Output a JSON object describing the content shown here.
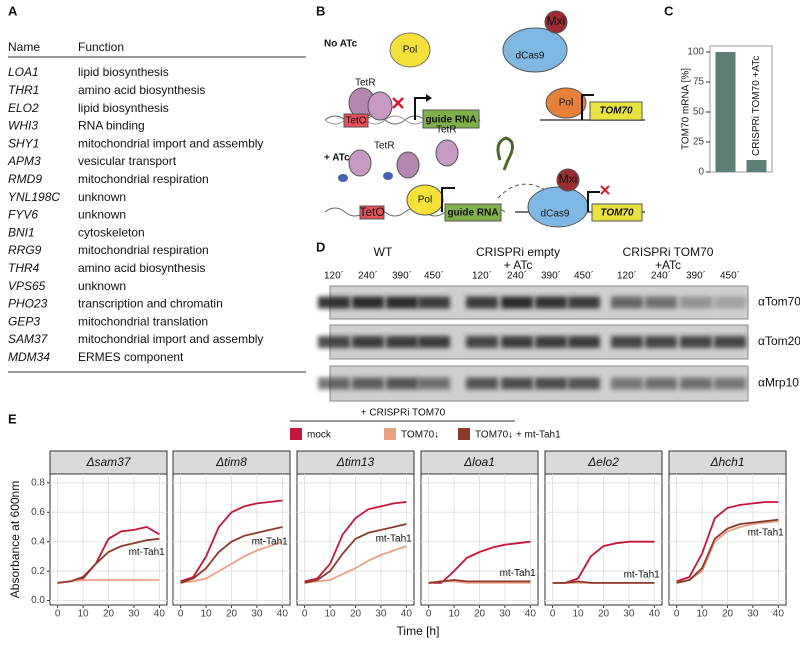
{
  "panel_labels": [
    "A",
    "B",
    "C",
    "D",
    "E"
  ],
  "table": {
    "header": [
      "Name",
      "Function"
    ],
    "rows": [
      [
        "LOA1",
        "lipid biosynthesis"
      ],
      [
        "THR1",
        "amino acid biosynthesis"
      ],
      [
        "ELO2",
        "lipid biosynthesis"
      ],
      [
        "WHI3",
        "RNA binding"
      ],
      [
        "SHY1",
        "mitochondrial import and assembly"
      ],
      [
        "APM3",
        "vesicular transport"
      ],
      [
        "RMD9",
        "mitochondrial respiration"
      ],
      [
        "YNL198C",
        "unknown"
      ],
      [
        "FYV6",
        "unknown"
      ],
      [
        "BNI1",
        "cytoskeleton"
      ],
      [
        "RRG9",
        "mitochondrial respiration"
      ],
      [
        "THR4",
        "amino acid biosynthesis"
      ],
      [
        "VPS65",
        "unknown"
      ],
      [
        "PHO23",
        "transcription and chromatin"
      ],
      [
        "GEP3",
        "mitochondrial translation"
      ],
      [
        "SAM37",
        "mitochondrial import and assembly"
      ],
      [
        "MDM34",
        "ERMES component"
      ]
    ]
  },
  "diagram": {
    "no_atc": "No ATc",
    "pol_1": "Pol",
    "tetr_1": "TetR",
    "teto_1": "TetO",
    "guide_1": "guide RNA",
    "dcas9_1": "dCas9",
    "mxi_1": "Mxi",
    "pol_2": "Pol",
    "tom70_1": "TOM70",
    "atc": "+ ATc",
    "tetr_2": "TetR",
    "tetr_3": "TetR",
    "teto_2": "TetO",
    "pol_3": "Pol",
    "guide_2": "guide RNA",
    "mxi_2": "Mxi",
    "dcas9_2": "dCas9",
    "tom70_2": "TOM70"
  },
  "blot": {
    "groups": [
      [
        "WT"
      ],
      [
        "CRISPRi empty",
        "+ ATc"
      ],
      [
        "CRISPRi TOM70",
        "+ATc"
      ]
    ],
    "timepoints": [
      "120´",
      "240´",
      "390´",
      "450´"
    ],
    "antibodies": [
      "αTom70",
      "αTom20",
      "αMrp10"
    ]
  },
  "chart_data": [
    {
      "type": "bar",
      "ylabel": "TOM70 mRNA [%]",
      "categories": [
        null,
        "CRISPRi TOM70 +ATc"
      ],
      "values": [
        100,
        10
      ],
      "color": "#5e7d76",
      "ylim": [
        0,
        105
      ],
      "yticks": [
        0,
        25,
        50,
        75,
        100
      ]
    },
    {
      "type": "line",
      "legend_title": "+ CRISPRi TOM70",
      "series": [
        {
          "name": "mock",
          "color": "#c4153c"
        },
        {
          "name": "TOM70↓",
          "color": "#e9a184"
        },
        {
          "name": "TOM70↓ + mt-Tah1",
          "color": "#8a3b2b"
        }
      ],
      "x": [
        0,
        5,
        10,
        15,
        20,
        25,
        30,
        35,
        40
      ],
      "xlim": [
        -3,
        43
      ],
      "xticks": [
        0,
        10,
        20,
        30,
        40
      ],
      "ylim": [
        -0.03,
        0.86
      ],
      "yticks": [
        {
          "value": 0,
          "label": "0.0"
        },
        0.2,
        0.4,
        0.6,
        0.8
      ],
      "grid": true,
      "xlabel": "Time [h]",
      "ylabel": "Absorbance at 600nm",
      "facets": [
        {
          "title": "Δsam37",
          "annotation": "mt-Tah1",
          "values": [
            [
              0.12,
              0.13,
              0.15,
              0.25,
              0.42,
              0.47,
              0.48,
              0.5,
              0.45
            ],
            [
              0.12,
              0.13,
              0.14,
              0.14,
              0.14,
              0.14,
              0.14,
              0.14,
              0.14
            ],
            [
              0.12,
              0.13,
              0.16,
              0.25,
              0.33,
              0.37,
              0.39,
              0.41,
              0.42
            ]
          ]
        },
        {
          "title": "Δtim8",
          "annotation": "mt-Tah1",
          "values": [
            [
              0.13,
              0.16,
              0.3,
              0.5,
              0.6,
              0.64,
              0.66,
              0.67,
              0.68
            ],
            [
              0.12,
              0.13,
              0.15,
              0.2,
              0.25,
              0.3,
              0.34,
              0.37,
              0.4
            ],
            [
              0.12,
              0.15,
              0.22,
              0.33,
              0.4,
              0.44,
              0.46,
              0.48,
              0.5
            ]
          ]
        },
        {
          "title": "Δtim13",
          "annotation": "mt-Tah1",
          "values": [
            [
              0.13,
              0.15,
              0.25,
              0.45,
              0.56,
              0.62,
              0.64,
              0.66,
              0.67
            ],
            [
              0.12,
              0.13,
              0.14,
              0.18,
              0.22,
              0.27,
              0.31,
              0.34,
              0.37
            ],
            [
              0.12,
              0.14,
              0.2,
              0.32,
              0.42,
              0.46,
              0.48,
              0.5,
              0.52
            ]
          ]
        },
        {
          "title": "Δloa1",
          "annotation": "mt-Tah1",
          "values": [
            [
              0.12,
              0.12,
              0.2,
              0.29,
              0.33,
              0.36,
              0.38,
              0.39,
              0.4
            ],
            [
              0.12,
              0.13,
              0.13,
              0.12,
              0.12,
              0.12,
              0.12,
              0.12,
              0.12
            ],
            [
              0.12,
              0.13,
              0.14,
              0.13,
              0.13,
              0.13,
              0.13,
              0.13,
              0.13
            ]
          ]
        },
        {
          "title": "Δelo2",
          "annotation": "mt-Tah1",
          "values": [
            [
              0.12,
              0.12,
              0.15,
              0.3,
              0.37,
              0.39,
              0.4,
              0.4,
              0.4
            ],
            [
              0.12,
              0.12,
              0.12,
              0.12,
              0.12,
              0.12,
              0.12,
              0.12,
              0.12
            ],
            [
              0.12,
              0.12,
              0.13,
              0.12,
              0.12,
              0.12,
              0.12,
              0.12,
              0.12
            ]
          ]
        },
        {
          "title": "Δhch1",
          "annotation": "mt-Tah1",
          "values": [
            [
              0.13,
              0.16,
              0.32,
              0.56,
              0.63,
              0.65,
              0.66,
              0.67,
              0.67
            ],
            [
              0.12,
              0.14,
              0.2,
              0.4,
              0.47,
              0.5,
              0.52,
              0.53,
              0.54
            ],
            [
              0.12,
              0.14,
              0.22,
              0.42,
              0.49,
              0.52,
              0.53,
              0.54,
              0.55
            ]
          ]
        }
      ]
    }
  ]
}
